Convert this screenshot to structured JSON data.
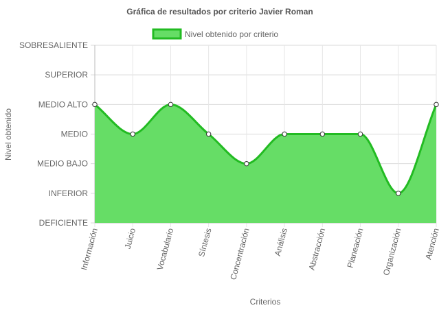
{
  "chart_data": {
    "type": "area",
    "title": "Gráfica de resultados por criterio Javier Roman",
    "xlabel": "Criterios",
    "ylabel": "Nivel obtenido",
    "categories": [
      "Información",
      "Juicio",
      "Vocabulario",
      "Síntesis",
      "Concentración",
      "Análisis",
      "Abstracción",
      "Planeación",
      "Organización",
      "Atención"
    ],
    "y_levels": [
      "DEFICIENTE",
      "INFERIOR",
      "MEDIO BAJO",
      "MEDIO",
      "MEDIO ALTO",
      "SUPERIOR",
      "SOBRESALIENTE"
    ],
    "ylim": [
      0,
      6
    ],
    "series": [
      {
        "name": "Nivel obtenido por criterio",
        "values": [
          4,
          3,
          4,
          3,
          2,
          3,
          3,
          3,
          1,
          4
        ],
        "value_labels": [
          "MEDIO ALTO",
          "MEDIO",
          "MEDIO ALTO",
          "MEDIO",
          "MEDIO BAJO",
          "MEDIO",
          "MEDIO",
          "MEDIO",
          "INFERIOR",
          "MEDIO ALTO"
        ],
        "fill_color": "#66dd66",
        "line_color": "#22bb22"
      }
    ],
    "grid": true,
    "legend_position": "top"
  }
}
